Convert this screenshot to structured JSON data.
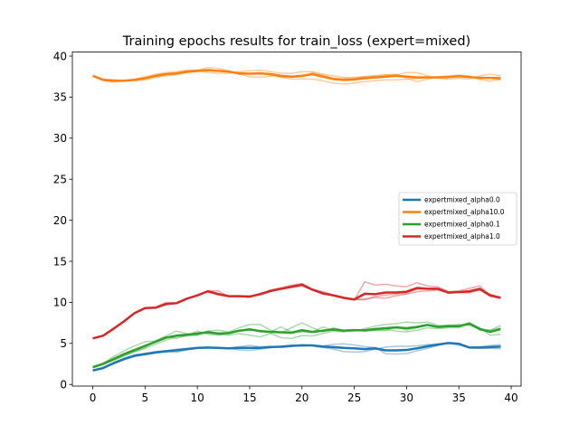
{
  "chart_data": {
    "type": "line",
    "title": "Training epochs results for train_loss (expert=mixed)",
    "xlabel": "",
    "ylabel": "",
    "xlim": [
      -1.95,
      40.95
    ],
    "ylim": [
      -0.2,
      40.5
    ],
    "xticks": [
      0,
      5,
      10,
      15,
      20,
      25,
      30,
      35,
      40
    ],
    "yticks": [
      0,
      5,
      10,
      15,
      20,
      25,
      30,
      35,
      40
    ],
    "grid": false,
    "legend_position": "center-right",
    "series": [
      {
        "name": "expertmixed_alpha0.0",
        "color": "#1f77b4",
        "x": [
          0,
          1,
          2,
          3,
          4,
          5,
          6,
          7,
          8,
          9,
          10,
          11,
          12,
          13,
          14,
          15,
          16,
          17,
          18,
          19,
          20,
          21,
          22,
          23,
          24,
          25,
          26,
          27,
          28,
          29,
          30,
          31,
          32,
          33,
          34,
          35,
          36,
          37,
          38,
          39
        ],
        "values": [
          1.7,
          2.0,
          2.6,
          3.1,
          3.5,
          3.7,
          3.9,
          4.05,
          4.15,
          4.3,
          4.45,
          4.5,
          4.45,
          4.4,
          4.45,
          4.45,
          4.45,
          4.55,
          4.6,
          4.7,
          4.75,
          4.75,
          4.6,
          4.55,
          4.45,
          4.4,
          4.3,
          4.4,
          4.15,
          4.15,
          4.2,
          4.4,
          4.65,
          4.85,
          5.05,
          4.95,
          4.5,
          4.5,
          4.55,
          4.6
        ],
        "shadows": [
          [
            1.7,
            2.0,
            2.5,
            3.0,
            3.4,
            3.6,
            3.8,
            3.95,
            3.9,
            4.2,
            4.4,
            4.45,
            4.5,
            4.4,
            4.2,
            4.15,
            4.3,
            4.5,
            4.6,
            4.8,
            4.7,
            4.8,
            4.7,
            4.9,
            4.95,
            4.8,
            4.6,
            4.5,
            3.75,
            3.7,
            3.75,
            4.1,
            4.4,
            4.75,
            5.05,
            4.8,
            4.45,
            4.4,
            4.4,
            4.35
          ],
          [
            1.7,
            2.1,
            2.65,
            3.2,
            3.6,
            3.8,
            4.0,
            4.1,
            4.3,
            4.4,
            4.5,
            4.5,
            4.4,
            4.45,
            4.6,
            4.75,
            4.6,
            4.65,
            4.5,
            4.6,
            4.85,
            4.7,
            4.5,
            4.3,
            4.0,
            3.95,
            4.0,
            4.3,
            4.55,
            4.65,
            4.65,
            4.7,
            4.85,
            4.95,
            5.0,
            5.0,
            4.55,
            4.6,
            4.75,
            4.85
          ],
          [
            1.7,
            1.95,
            2.6,
            3.1,
            3.5,
            3.7,
            3.9,
            4.05,
            4.2,
            4.3,
            4.45,
            4.55,
            4.45,
            4.35,
            4.5,
            4.45,
            4.45,
            4.5,
            4.65,
            4.7,
            4.7,
            4.75,
            4.6,
            4.45,
            4.4,
            4.45,
            4.3,
            4.4,
            4.15,
            4.1,
            4.2,
            4.4,
            4.7,
            4.85,
            5.1,
            5.0,
            4.5,
            4.5,
            4.5,
            4.6
          ]
        ]
      },
      {
        "name": "expertmixed_alpha10.0",
        "color": "#ff7f0e",
        "x": [
          0,
          1,
          2,
          3,
          4,
          5,
          6,
          7,
          8,
          9,
          10,
          11,
          12,
          13,
          14,
          15,
          16,
          17,
          18,
          19,
          20,
          21,
          22,
          23,
          24,
          25,
          26,
          27,
          28,
          29,
          30,
          31,
          32,
          33,
          34,
          35,
          36,
          37,
          38,
          39
        ],
        "values": [
          37.6,
          37.1,
          37.0,
          37.0,
          37.1,
          37.3,
          37.6,
          37.8,
          37.9,
          38.1,
          38.2,
          38.3,
          38.2,
          38.1,
          37.9,
          37.85,
          37.9,
          37.8,
          37.6,
          37.5,
          37.6,
          37.8,
          37.5,
          37.2,
          37.1,
          37.15,
          37.3,
          37.4,
          37.5,
          37.6,
          37.5,
          37.4,
          37.4,
          37.4,
          37.45,
          37.55,
          37.45,
          37.35,
          37.35,
          37.3
        ],
        "shadows": [
          [
            37.6,
            37.0,
            36.8,
            37.0,
            37.2,
            37.5,
            37.8,
            38.0,
            38.1,
            38.3,
            38.3,
            38.6,
            38.5,
            38.2,
            37.8,
            37.5,
            37.4,
            37.6,
            37.4,
            37.2,
            37.2,
            37.2,
            37.0,
            36.7,
            36.6,
            36.7,
            36.9,
            37.0,
            37.1,
            37.1,
            37.2,
            37.3,
            37.4,
            37.4,
            37.5,
            37.6,
            37.5,
            37.3,
            37.3,
            37.1
          ],
          [
            37.6,
            37.2,
            37.1,
            37.0,
            37.0,
            37.1,
            37.4,
            37.6,
            37.7,
            38.0,
            38.2,
            38.0,
            37.9,
            37.9,
            38.1,
            38.2,
            38.3,
            38.1,
            37.9,
            37.9,
            38.1,
            38.1,
            37.8,
            37.6,
            37.4,
            37.4,
            37.5,
            37.6,
            37.7,
            37.7,
            38.0,
            38.0,
            37.6,
            37.3,
            37.2,
            37.3,
            37.2,
            37.6,
            37.8,
            37.6
          ],
          [
            37.6,
            37.1,
            37.1,
            37.0,
            37.1,
            37.3,
            37.5,
            37.8,
            37.9,
            38.0,
            38.1,
            38.3,
            38.2,
            38.2,
            37.8,
            37.85,
            38.0,
            37.7,
            37.5,
            37.4,
            37.5,
            38.0,
            37.7,
            37.3,
            37.3,
            37.35,
            37.5,
            37.6,
            37.7,
            37.8,
            37.3,
            36.9,
            37.2,
            37.5,
            37.6,
            37.7,
            37.6,
            37.15,
            36.95,
            37.2
          ]
        ]
      },
      {
        "name": "expertmixed_alpha0.1",
        "color": "#2ca02c",
        "x": [
          0,
          1,
          2,
          3,
          4,
          5,
          6,
          7,
          8,
          9,
          10,
          11,
          12,
          13,
          14,
          15,
          16,
          17,
          18,
          19,
          20,
          21,
          22,
          23,
          24,
          25,
          26,
          27,
          28,
          29,
          30,
          31,
          32,
          33,
          34,
          35,
          36,
          37,
          38,
          39
        ],
        "values": [
          2.1,
          2.5,
          3.1,
          3.7,
          4.2,
          4.7,
          5.2,
          5.7,
          5.95,
          6.05,
          6.2,
          6.35,
          6.2,
          6.25,
          6.55,
          6.7,
          6.5,
          6.4,
          6.35,
          6.3,
          6.6,
          6.4,
          6.55,
          6.7,
          6.55,
          6.6,
          6.6,
          6.75,
          6.85,
          6.95,
          6.85,
          7.0,
          7.25,
          7.0,
          7.1,
          7.1,
          7.4,
          6.75,
          6.4,
          6.75
        ],
        "shadows": [
          [
            2.1,
            2.6,
            3.4,
            4.1,
            4.7,
            5.2,
            5.3,
            5.9,
            6.5,
            6.2,
            6.0,
            6.5,
            6.6,
            6.4,
            6.9,
            7.3,
            7.3,
            6.6,
            6.3,
            6.9,
            7.5,
            6.9,
            6.4,
            6.9,
            6.6,
            6.5,
            6.8,
            7.1,
            7.3,
            7.4,
            7.6,
            7.5,
            7.6,
            7.2,
            7.2,
            7.3,
            7.2,
            6.8,
            6.6,
            7.2
          ],
          [
            2.1,
            2.45,
            2.9,
            3.5,
            4.0,
            4.4,
            4.9,
            5.4,
            5.8,
            5.9,
            6.0,
            6.5,
            6.1,
            6.0,
            6.2,
            6.0,
            5.8,
            6.2,
            5.7,
            5.6,
            5.95,
            5.9,
            6.2,
            6.5,
            6.4,
            6.6,
            6.5,
            6.6,
            6.7,
            6.5,
            6.4,
            6.6,
            6.9,
            6.8,
            6.9,
            6.9,
            7.5,
            6.9,
            6.0,
            6.1
          ],
          [
            2.1,
            2.45,
            3.0,
            3.5,
            4.0,
            4.5,
            5.3,
            5.8,
            5.6,
            6.0,
            6.5,
            6.1,
            6.0,
            6.3,
            6.5,
            6.8,
            6.4,
            6.4,
            7.0,
            6.4,
            6.35,
            6.4,
            7.0,
            6.6,
            6.6,
            6.7,
            6.5,
            6.6,
            6.55,
            7.0,
            6.6,
            6.9,
            7.25,
            7.0,
            7.2,
            7.1,
            7.5,
            6.6,
            6.6,
            6.9
          ]
        ]
      },
      {
        "name": "expertmixed_alpha1.0",
        "color": "#d62728",
        "x": [
          0,
          1,
          2,
          3,
          4,
          5,
          6,
          7,
          8,
          9,
          10,
          11,
          12,
          13,
          14,
          15,
          16,
          17,
          18,
          19,
          20,
          21,
          22,
          23,
          24,
          25,
          26,
          27,
          28,
          29,
          30,
          31,
          32,
          33,
          34,
          35,
          36,
          37,
          38,
          39
        ],
        "values": [
          5.6,
          5.95,
          6.8,
          7.7,
          8.7,
          9.3,
          9.35,
          9.8,
          9.9,
          10.45,
          10.85,
          11.35,
          11.0,
          10.75,
          10.75,
          10.7,
          11.0,
          11.4,
          11.65,
          11.9,
          12.15,
          11.55,
          11.1,
          10.85,
          10.55,
          10.35,
          11.05,
          11.0,
          11.2,
          11.2,
          11.3,
          11.75,
          11.65,
          11.65,
          11.2,
          11.25,
          11.35,
          11.65,
          10.85,
          10.55
        ],
        "shadows": [
          [
            5.6,
            5.95,
            6.8,
            7.7,
            8.7,
            9.3,
            9.4,
            10.0,
            9.9,
            10.4,
            10.9,
            11.3,
            11.1,
            10.8,
            10.8,
            10.7,
            11.0,
            11.5,
            11.8,
            12.1,
            12.3,
            11.6,
            11.3,
            10.9,
            10.6,
            10.3,
            12.5,
            12.1,
            12.2,
            12.0,
            11.9,
            12.4,
            12.0,
            11.9,
            11.3,
            11.4,
            11.7,
            12.0,
            10.8,
            10.6
          ],
          [
            5.6,
            5.95,
            6.8,
            7.7,
            8.7,
            9.3,
            9.3,
            9.7,
            9.9,
            10.5,
            10.8,
            11.4,
            11.4,
            10.7,
            10.7,
            10.8,
            10.9,
            11.3,
            11.6,
            11.8,
            12.0,
            11.5,
            11.0,
            10.8,
            10.5,
            10.3,
            10.4,
            10.7,
            10.9,
            11.0,
            11.1,
            11.6,
            11.6,
            11.6,
            11.2,
            11.2,
            11.2,
            11.5,
            11.0,
            10.6
          ],
          [
            5.6,
            5.95,
            6.8,
            7.7,
            8.7,
            9.3,
            9.35,
            9.8,
            9.9,
            10.45,
            10.85,
            11.3,
            10.9,
            10.75,
            10.75,
            10.6,
            11.1,
            11.4,
            11.6,
            11.9,
            12.2,
            11.55,
            11.1,
            10.85,
            10.55,
            10.4,
            10.3,
            10.6,
            10.5,
            10.8,
            11.0,
            11.3,
            11.4,
            11.5,
            11.1,
            11.2,
            11.2,
            11.5,
            10.7,
            10.5
          ]
        ]
      }
    ]
  }
}
